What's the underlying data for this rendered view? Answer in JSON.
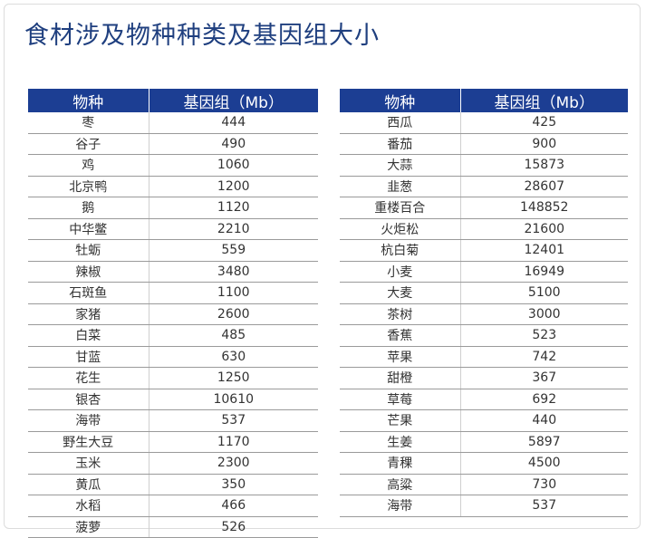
{
  "title": "食材涉及物种种类及基因组大小",
  "table_left": {
    "headers": [
      "物种",
      "基因组（Mb）"
    ],
    "rows": [
      [
        "枣",
        "444"
      ],
      [
        "谷子",
        "490"
      ],
      [
        "鸡",
        "1060"
      ],
      [
        "北京鸭",
        "1200"
      ],
      [
        "鹅",
        "1120"
      ],
      [
        "中华鳖",
        "2210"
      ],
      [
        "牡蛎",
        "559"
      ],
      [
        "辣椒",
        "3480"
      ],
      [
        "石斑鱼",
        "1100"
      ],
      [
        "家猪",
        "2600"
      ],
      [
        "白菜",
        "485"
      ],
      [
        "甘蓝",
        "630"
      ],
      [
        "花生",
        "1250"
      ],
      [
        "银杏",
        "10610"
      ],
      [
        "海带",
        "537"
      ],
      [
        "野生大豆",
        "1170"
      ],
      [
        "玉米",
        "2300"
      ],
      [
        "黄瓜",
        "350"
      ],
      [
        "水稻",
        "466"
      ],
      [
        "菠萝",
        "526"
      ]
    ]
  },
  "table_right": {
    "headers": [
      "物种",
      "基因组（Mb）"
    ],
    "rows": [
      [
        "西瓜",
        "425"
      ],
      [
        "番茄",
        "900"
      ],
      [
        "大蒜",
        "15873"
      ],
      [
        "韭葱",
        "28607"
      ],
      [
        "重楼百合",
        "148852"
      ],
      [
        "火炬松",
        "21600"
      ],
      [
        "杭白菊",
        "12401"
      ],
      [
        "小麦",
        "16949"
      ],
      [
        "大麦",
        "5100"
      ],
      [
        "茶树",
        "3000"
      ],
      [
        "香蕉",
        "523"
      ],
      [
        "苹果",
        "742"
      ],
      [
        "甜橙",
        "367"
      ],
      [
        "草莓",
        "692"
      ],
      [
        "芒果",
        "440"
      ],
      [
        "生姜",
        "5897"
      ],
      [
        "青稞",
        "4500"
      ],
      [
        "高粱",
        "730"
      ],
      [
        "海带",
        "537"
      ]
    ]
  }
}
